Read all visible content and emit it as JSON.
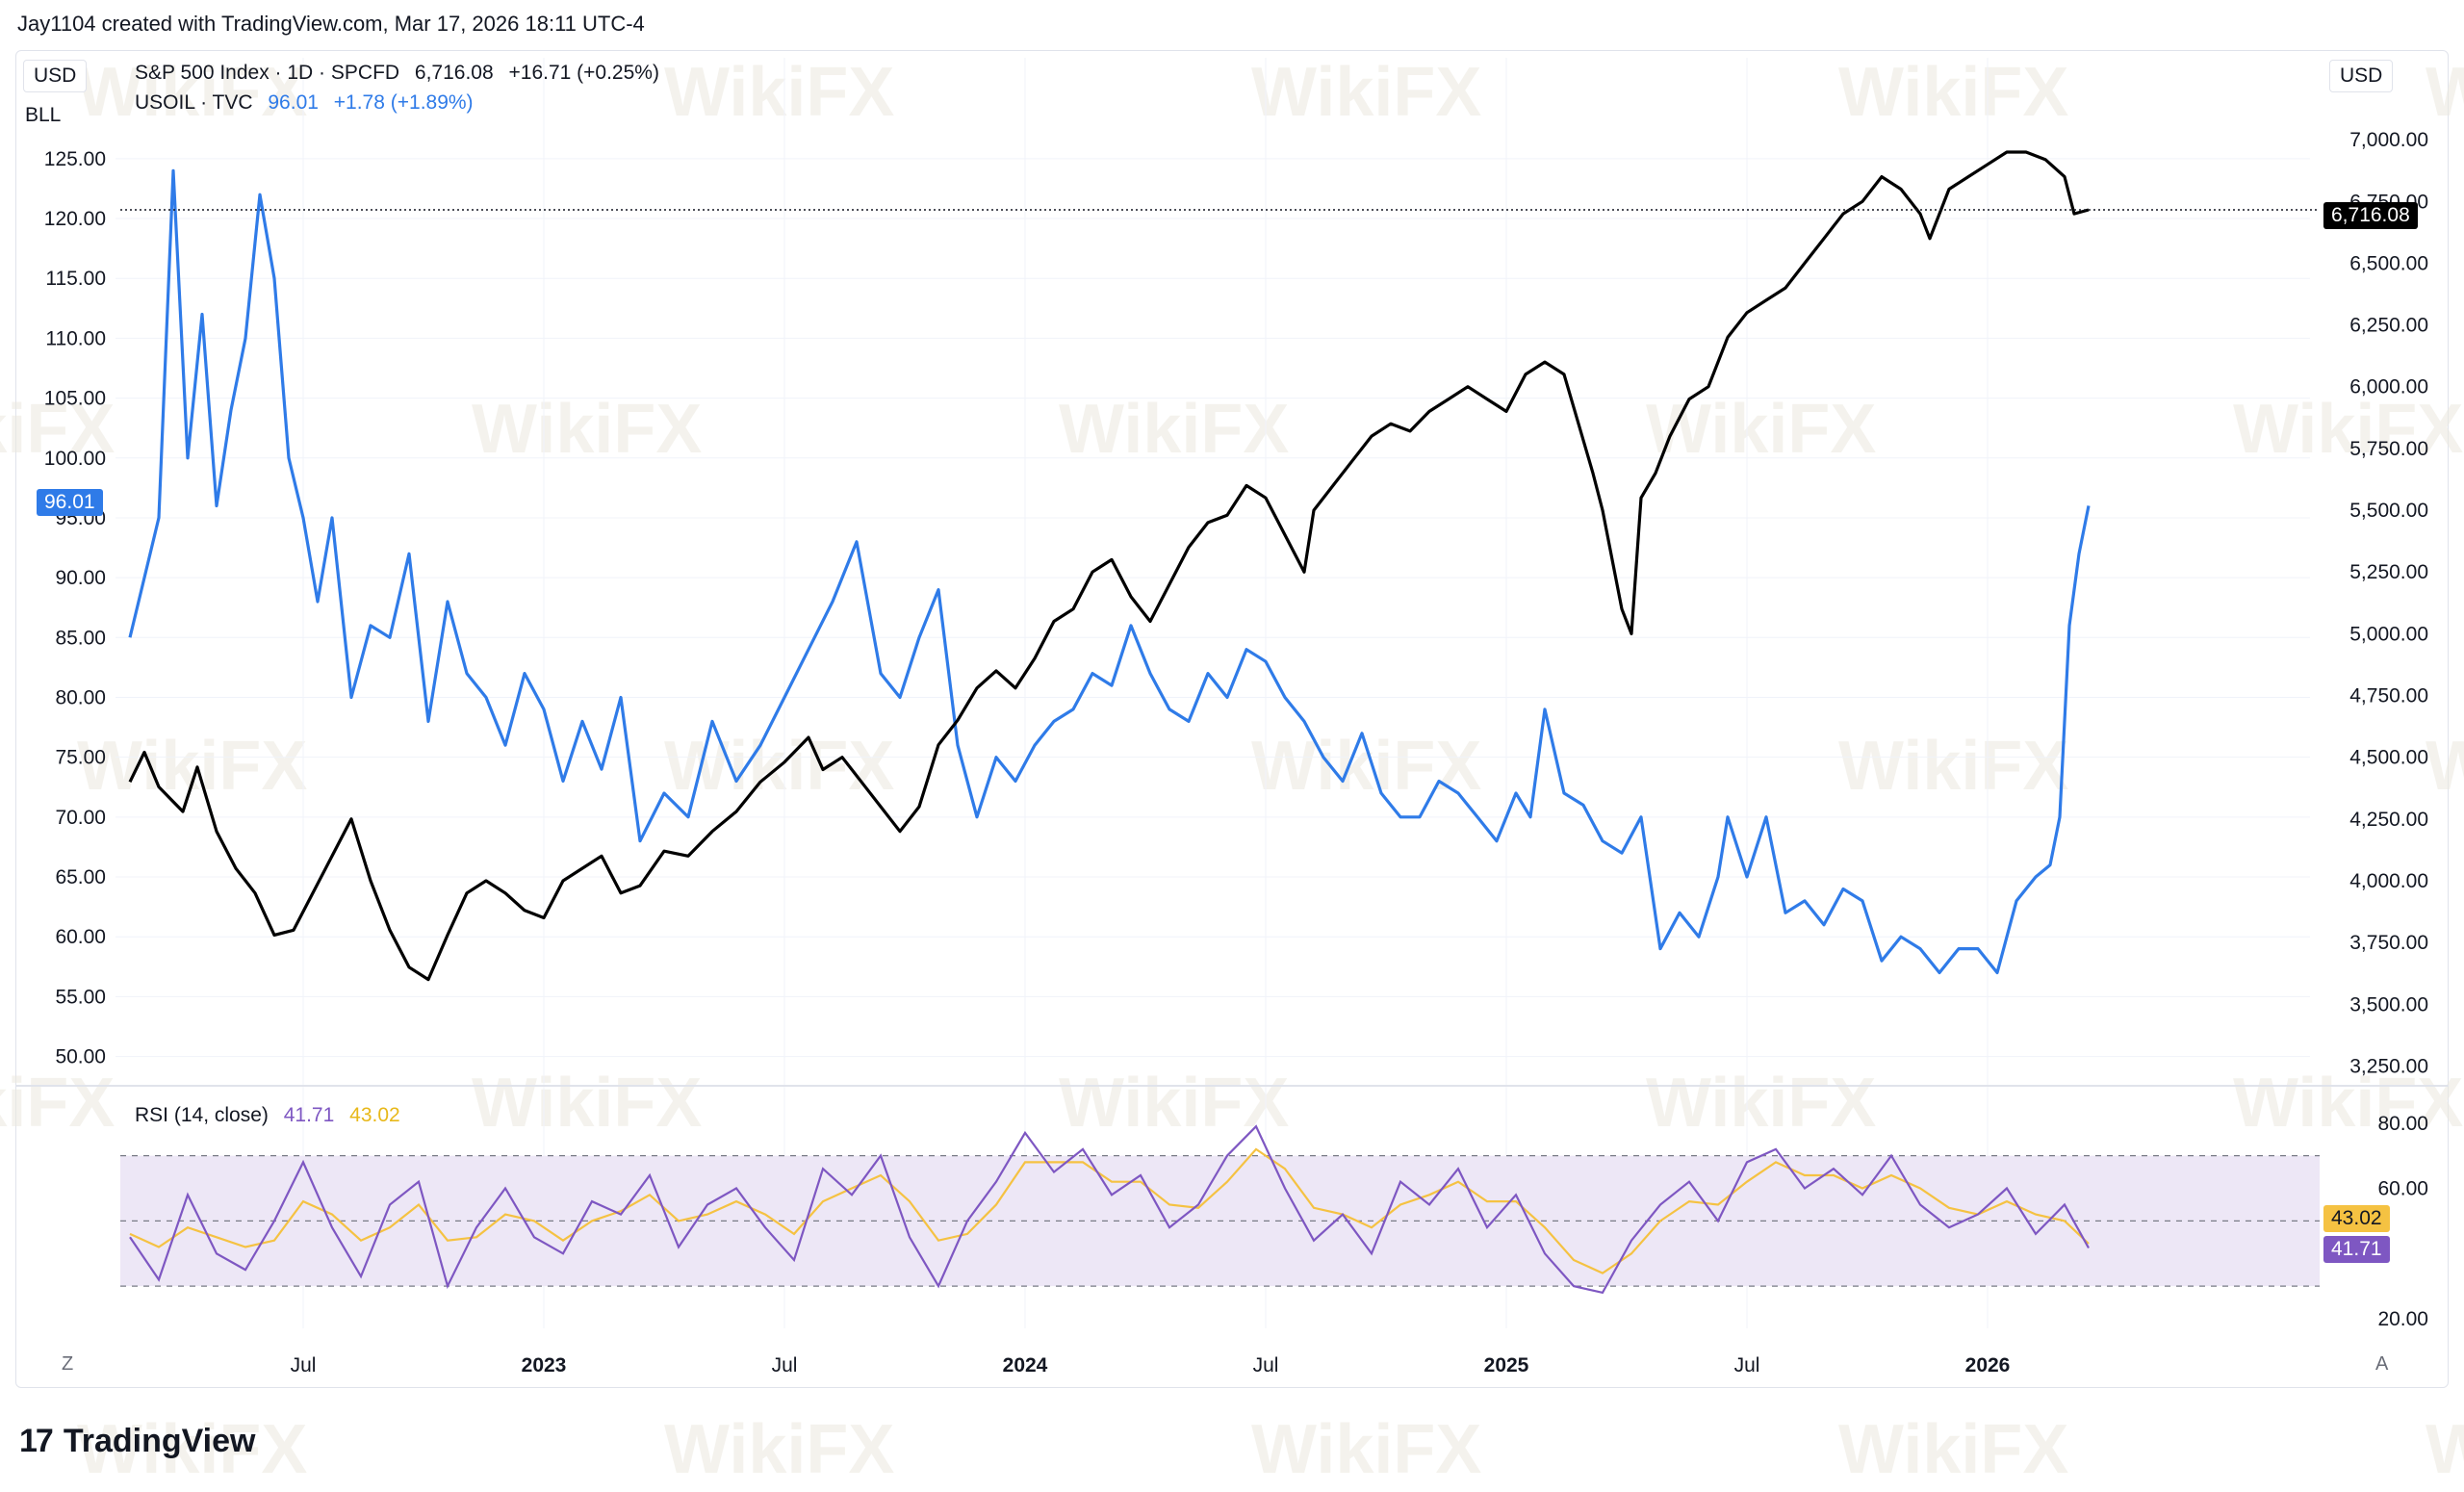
{
  "header": {
    "text": "Jay1104 created with TradingView.com, Mar 17, 2026 18:11 UTC-4"
  },
  "legend": {
    "spx_name": "S&P 500 Index · 1D · SPCFD",
    "spx_value": "6,716.08",
    "spx_change": "+16.71 (+0.25%)",
    "oil_name": "USOIL · TVC",
    "oil_value": "96.01",
    "oil_change": "+1.78 (+1.89%)",
    "rsi_name": "RSI (14, close)",
    "rsi_value": "41.71",
    "rsi_ma_value": "43.02"
  },
  "units": {
    "left_currency": "USD",
    "left_unit": "BLL",
    "right_currency": "USD"
  },
  "price_tags": {
    "oil": "96.01",
    "spx": "6,716.08",
    "rsi_ma": "43.02",
    "rsi": "41.71"
  },
  "buttons": {
    "zoom": "Z",
    "auto": "A"
  },
  "brand": {
    "logo": "17",
    "name": "TradingView"
  },
  "watermark": "WikiFX",
  "colors": {
    "spx": "#000000",
    "oil": "#2f7be8",
    "rsi": "#7e57c2",
    "rsi_ma": "#f5c242",
    "rsi_band": "#ede7f6",
    "grid": "#f0f3fa"
  },
  "chart_data": {
    "type": "line",
    "x_ticks": [
      "Jul",
      "2023",
      "Jul",
      "2024",
      "Jul",
      "2025",
      "Jul",
      "2026"
    ],
    "left_axis": {
      "currency": "USD",
      "unit": "BLL",
      "ticks": [
        125,
        120,
        115,
        110,
        105,
        100,
        95,
        90,
        85,
        80,
        75,
        70,
        65,
        60,
        55,
        50
      ],
      "labels": [
        "125.00",
        "120.00",
        "115.00",
        "110.00",
        "105.00",
        "100.00",
        "95.00",
        "90.00",
        "85.00",
        "80.00",
        "75.00",
        "70.00",
        "65.00",
        "60.00",
        "55.00",
        "50.00"
      ],
      "ylim": [
        49,
        127
      ]
    },
    "right_axis": {
      "currency": "USD",
      "ticks": [
        7000,
        6750,
        6500,
        6250,
        6000,
        5750,
        5500,
        5250,
        5000,
        4750,
        4500,
        4250,
        4000,
        3750,
        3500,
        3250
      ],
      "labels": [
        "7,000.00",
        "6,750.00",
        "6,500.00",
        "6,250.00",
        "6,000.00",
        "5,750.00",
        "5,500.00",
        "5,250.00",
        "5,000.00",
        "4,750.00",
        "4,500.00",
        "4,250.00",
        "4,000.00",
        "3,750.00",
        "3,500.00",
        "3,250.00"
      ],
      "ylim": [
        3240,
        7020
      ]
    },
    "x_domain": [
      2022.12,
      2026.48
    ],
    "series": [
      {
        "name": "S&P 500 Index · 1D · SPCFD",
        "axis": "right",
        "x": [
          2022.14,
          2022.17,
          2022.2,
          2022.25,
          2022.28,
          2022.32,
          2022.36,
          2022.4,
          2022.44,
          2022.48,
          2022.52,
          2022.56,
          2022.6,
          2022.64,
          2022.68,
          2022.72,
          2022.76,
          2022.8,
          2022.84,
          2022.88,
          2022.92,
          2022.96,
          2023.0,
          2023.04,
          2023.08,
          2023.12,
          2023.16,
          2023.2,
          2023.25,
          2023.3,
          2023.35,
          2023.4,
          2023.45,
          2023.5,
          2023.55,
          2023.58,
          2023.62,
          2023.66,
          2023.7,
          2023.74,
          2023.78,
          2023.82,
          2023.86,
          2023.9,
          2023.94,
          2023.98,
          2024.02,
          2024.06,
          2024.1,
          2024.14,
          2024.18,
          2024.22,
          2024.26,
          2024.3,
          2024.34,
          2024.38,
          2024.42,
          2024.46,
          2024.5,
          2024.54,
          2024.58,
          2024.6,
          2024.64,
          2024.68,
          2024.72,
          2024.76,
          2024.8,
          2024.84,
          2024.88,
          2024.92,
          2024.96,
          2025.0,
          2025.04,
          2025.08,
          2025.12,
          2025.15,
          2025.18,
          2025.2,
          2025.24,
          2025.26,
          2025.28,
          2025.31,
          2025.34,
          2025.38,
          2025.42,
          2025.46,
          2025.5,
          2025.54,
          2025.58,
          2025.62,
          2025.66,
          2025.7,
          2025.74,
          2025.78,
          2025.82,
          2025.86,
          2025.88,
          2025.92,
          2025.96,
          2026.0,
          2026.04,
          2026.08,
          2026.12,
          2026.16,
          2026.18,
          2026.21
        ],
        "values": [
          4400,
          4520,
          4380,
          4280,
          4460,
          4200,
          4050,
          3950,
          3780,
          3800,
          3950,
          4100,
          4250,
          4000,
          3800,
          3650,
          3600,
          3780,
          3950,
          4000,
          3950,
          3880,
          3850,
          4000,
          4050,
          4100,
          3950,
          3980,
          4120,
          4100,
          4200,
          4280,
          4400,
          4480,
          4580,
          4450,
          4500,
          4400,
          4300,
          4200,
          4300,
          4550,
          4650,
          4780,
          4850,
          4780,
          4900,
          5050,
          5100,
          5250,
          5300,
          5150,
          5050,
          5200,
          5350,
          5450,
          5480,
          5600,
          5550,
          5400,
          5250,
          5500,
          5600,
          5700,
          5800,
          5850,
          5820,
          5900,
          5950,
          6000,
          5950,
          5900,
          6050,
          6100,
          6050,
          5850,
          5650,
          5500,
          5100,
          5000,
          5550,
          5650,
          5800,
          5950,
          6000,
          6200,
          6300,
          6350,
          6400,
          6500,
          6600,
          6700,
          6750,
          6850,
          6800,
          6700,
          6600,
          6800,
          6850,
          6900,
          6950,
          6950,
          6920,
          6850,
          6700,
          6716
        ]
      },
      {
        "name": "USOIL · TVC",
        "axis": "left",
        "x": [
          2022.14,
          2022.17,
          2022.2,
          2022.23,
          2022.26,
          2022.29,
          2022.32,
          2022.35,
          2022.38,
          2022.41,
          2022.44,
          2022.47,
          2022.5,
          2022.53,
          2022.56,
          2022.6,
          2022.64,
          2022.68,
          2022.72,
          2022.76,
          2022.8,
          2022.84,
          2022.88,
          2022.92,
          2022.96,
          2023.0,
          2023.04,
          2023.08,
          2023.12,
          2023.16,
          2023.2,
          2023.25,
          2023.3,
          2023.35,
          2023.4,
          2023.45,
          2023.5,
          2023.55,
          2023.6,
          2023.65,
          2023.7,
          2023.74,
          2023.78,
          2023.82,
          2023.86,
          2023.9,
          2023.94,
          2023.98,
          2024.02,
          2024.06,
          2024.1,
          2024.14,
          2024.18,
          2024.22,
          2024.26,
          2024.3,
          2024.34,
          2024.38,
          2024.42,
          2024.46,
          2024.5,
          2024.54,
          2024.58,
          2024.62,
          2024.66,
          2024.7,
          2024.74,
          2024.78,
          2024.82,
          2024.86,
          2024.9,
          2024.94,
          2024.98,
          2025.02,
          2025.05,
          2025.08,
          2025.12,
          2025.16,
          2025.2,
          2025.24,
          2025.28,
          2025.32,
          2025.36,
          2025.4,
          2025.44,
          2025.46,
          2025.5,
          2025.54,
          2025.58,
          2025.62,
          2025.66,
          2025.7,
          2025.74,
          2025.78,
          2025.82,
          2025.86,
          2025.9,
          2025.94,
          2025.98,
          2026.02,
          2026.06,
          2026.1,
          2026.13,
          2026.15,
          2026.17,
          2026.19,
          2026.21
        ],
        "values": [
          85,
          90,
          95,
          124,
          100,
          112,
          96,
          104,
          110,
          122,
          115,
          100,
          95,
          88,
          95,
          80,
          86,
          85,
          92,
          78,
          88,
          82,
          80,
          76,
          82,
          79,
          73,
          78,
          74,
          80,
          68,
          72,
          70,
          78,
          73,
          76,
          80,
          84,
          88,
          93,
          82,
          80,
          85,
          89,
          76,
          70,
          75,
          73,
          76,
          78,
          79,
          82,
          81,
          86,
          82,
          79,
          78,
          82,
          80,
          84,
          83,
          80,
          78,
          75,
          73,
          77,
          72,
          70,
          70,
          73,
          72,
          70,
          68,
          72,
          70,
          79,
          72,
          71,
          68,
          67,
          70,
          59,
          62,
          60,
          65,
          70,
          65,
          70,
          62,
          63,
          61,
          64,
          63,
          58,
          60,
          59,
          57,
          59,
          59,
          57,
          63,
          65,
          66,
          70,
          86,
          92,
          96.01
        ]
      }
    ],
    "rsi_panel": {
      "name": "RSI (14, close)",
      "ylim": [
        20,
        82
      ],
      "ticks": [
        80,
        60,
        40,
        20
      ],
      "labels": [
        "80.00",
        "60.00",
        "",
        "20.00"
      ],
      "bands": [
        70,
        30
      ],
      "midline": 50,
      "x": [
        2022.14,
        2022.2,
        2022.26,
        2022.32,
        2022.38,
        2022.44,
        2022.5,
        2022.56,
        2022.62,
        2022.68,
        2022.74,
        2022.8,
        2022.86,
        2022.92,
        2022.98,
        2023.04,
        2023.1,
        2023.16,
        2023.22,
        2023.28,
        2023.34,
        2023.4,
        2023.46,
        2023.52,
        2023.58,
        2023.64,
        2023.7,
        2023.76,
        2023.82,
        2023.88,
        2023.94,
        2024.0,
        2024.06,
        2024.12,
        2024.18,
        2024.24,
        2024.3,
        2024.36,
        2024.42,
        2024.48,
        2024.54,
        2024.6,
        2024.66,
        2024.72,
        2024.78,
        2024.84,
        2024.9,
        2024.96,
        2025.02,
        2025.08,
        2025.14,
        2025.2,
        2025.26,
        2025.32,
        2025.38,
        2025.44,
        2025.5,
        2025.56,
        2025.62,
        2025.68,
        2025.74,
        2025.8,
        2025.86,
        2025.92,
        2025.98,
        2026.04,
        2026.1,
        2026.16,
        2026.21
      ],
      "rsi": [
        45,
        32,
        58,
        40,
        35,
        50,
        68,
        48,
        33,
        55,
        62,
        30,
        48,
        60,
        45,
        40,
        56,
        52,
        64,
        42,
        55,
        60,
        48,
        38,
        66,
        58,
        70,
        45,
        30,
        50,
        62,
        77,
        65,
        72,
        58,
        64,
        48,
        55,
        70,
        79,
        60,
        44,
        52,
        40,
        62,
        55,
        66,
        48,
        58,
        40,
        30,
        28,
        44,
        55,
        62,
        50,
        68,
        72,
        60,
        66,
        58,
        70,
        55,
        48,
        52,
        60,
        46,
        55,
        41.71
      ],
      "ma": [
        46,
        42,
        48,
        45,
        42,
        44,
        56,
        52,
        44,
        48,
        55,
        44,
        45,
        52,
        50,
        44,
        50,
        53,
        58,
        50,
        52,
        56,
        52,
        46,
        56,
        60,
        64,
        56,
        44,
        46,
        55,
        68,
        68,
        68,
        62,
        62,
        55,
        54,
        62,
        72,
        66,
        54,
        52,
        48,
        55,
        58,
        62,
        56,
        56,
        48,
        38,
        34,
        40,
        50,
        56,
        55,
        62,
        68,
        64,
        64,
        60,
        64,
        60,
        54,
        52,
        56,
        52,
        50,
        43.02
      ]
    }
  }
}
